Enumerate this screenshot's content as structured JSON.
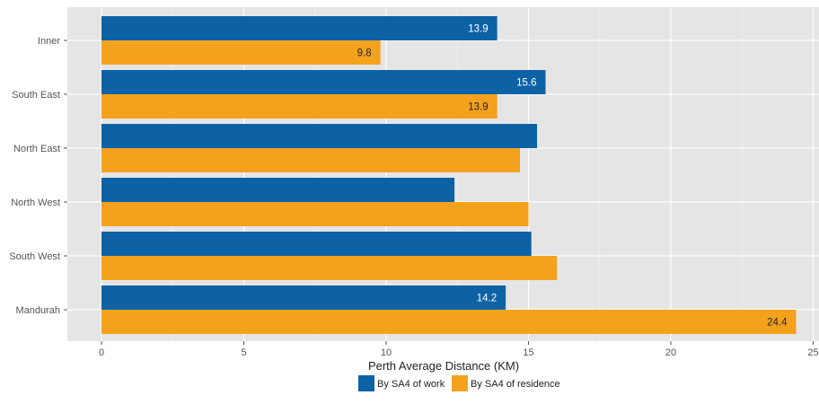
{
  "chart_data": {
    "type": "bar",
    "orientation": "horizontal",
    "categories": [
      "Inner",
      "South East",
      "North East",
      "North West",
      "South West",
      "Mandurah"
    ],
    "series": [
      {
        "name": "By SA4 of work",
        "color": "#0d62a6",
        "values": [
          13.9,
          15.6,
          15.3,
          12.4,
          15.1,
          14.2
        ],
        "labels": [
          "13.9",
          "15.6",
          "",
          "",
          "",
          "14.2"
        ]
      },
      {
        "name": "By SA4 of residence",
        "color": "#f4a21e",
        "values": [
          9.8,
          13.9,
          14.7,
          15.0,
          16.0,
          24.4
        ],
        "labels": [
          "9.8",
          "13.9",
          "",
          "",
          "",
          "24.4"
        ]
      }
    ],
    "xlabel": "Perth Average Distance (KM)",
    "ylabel": "",
    "xlim": [
      -1.2,
      25.2
    ],
    "x_ticks": [
      0,
      5,
      10,
      15,
      20,
      25
    ],
    "grid": true,
    "legend_position": "bottom",
    "label_colors": {
      "on_work": "#ffffff",
      "on_residence": "#222222"
    },
    "panel_background": "#e5e5e5"
  }
}
